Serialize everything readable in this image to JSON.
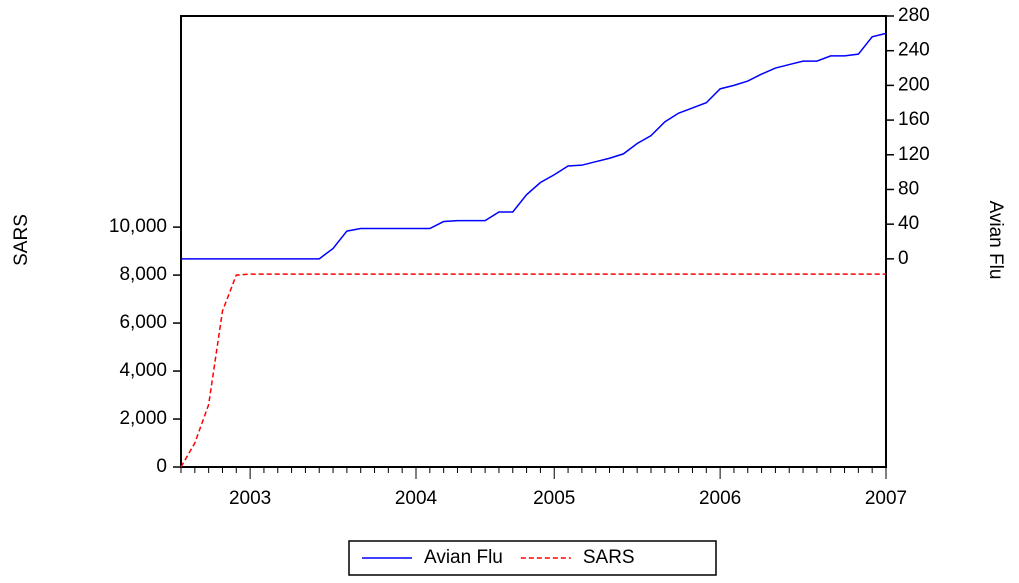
{
  "chart_data": {
    "type": "line",
    "categories": [
      null,
      null,
      null,
      null,
      null,
      "2003",
      null,
      null,
      null,
      null,
      null,
      null,
      null,
      null,
      null,
      null,
      null,
      "2004",
      null,
      null,
      null,
      null,
      null,
      null,
      null,
      null,
      null,
      "2005",
      null,
      null,
      null,
      null,
      null,
      null,
      null,
      null,
      null,
      null,
      null,
      "2006",
      null,
      null,
      null,
      null,
      null,
      null,
      null,
      null,
      null,
      null,
      null,
      "2007"
    ],
    "series": [
      {
        "name": "Avian Flu",
        "color": "#0000ff",
        "axis": "y2",
        "dashed": false,
        "values": [
          0,
          0,
          0,
          0,
          0,
          0,
          0,
          0,
          0,
          0,
          0,
          12,
          32,
          35,
          35,
          35,
          35,
          35,
          35,
          43,
          44,
          44,
          44,
          54,
          54,
          74,
          88,
          97,
          107,
          108,
          112,
          116,
          121,
          133,
          142,
          158,
          168,
          174,
          180,
          196,
          200,
          205,
          213,
          220,
          224,
          228,
          228,
          234,
          234,
          236,
          256,
          260
        ]
      },
      {
        "name": "SARS",
        "color": "#ff0000",
        "dashed": true,
        "values": [
          0,
          1000,
          2600,
          6500,
          8000,
          8040,
          8040,
          8040,
          8040,
          8040,
          8040,
          8040,
          8040,
          8040,
          8040,
          8040,
          8040,
          8040,
          8040,
          8040,
          8040,
          8040,
          8040,
          8040,
          8040,
          8040,
          8040,
          8040,
          8040,
          8040,
          8040,
          8040,
          8040,
          8040,
          8040,
          8040,
          8040,
          8040,
          8040,
          8040,
          8040,
          8040,
          8040,
          8040,
          8040,
          8040,
          8040,
          8040,
          8040,
          8040,
          8040,
          8040
        ]
      }
    ],
    "y_label": "SARS",
    "y2_label": "Avian Flu",
    "ylim": [
      0,
      18800
    ],
    "yticks": [
      0,
      {
        "value": 2000,
        "label": "2,000"
      },
      {
        "value": 4000,
        "label": "4,000"
      },
      {
        "value": 6000,
        "label": "6,000"
      },
      {
        "value": 8000,
        "label": "8,000"
      },
      {
        "value": 10000,
        "label": "10,000"
      }
    ],
    "y2lim": [
      -240,
      280
    ],
    "y2ticks": [
      0,
      40,
      80,
      120,
      160,
      200,
      240,
      280
    ],
    "grid": false,
    "legend": "bottom"
  }
}
